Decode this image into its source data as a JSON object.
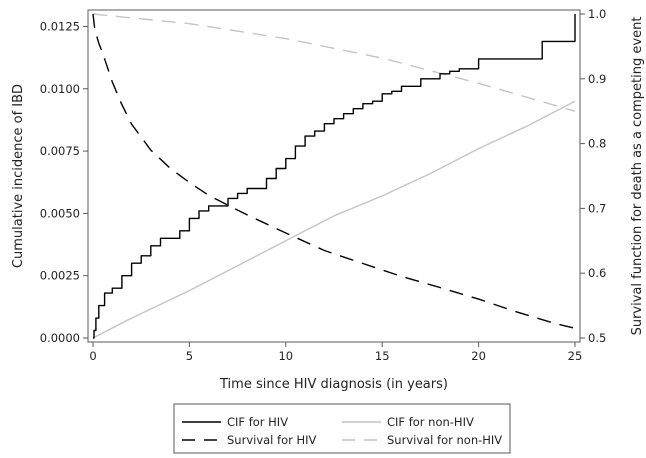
{
  "chart_data": {
    "type": "line",
    "title": "",
    "xlabel": "Time since HIV diagnosis (in years)",
    "ylabel_left": "Cumulative incidence of IBD",
    "ylabel_right": "Survival function for death as a competing event",
    "xlim": [
      0,
      25
    ],
    "ylim_left": [
      0,
      0.013
    ],
    "ylim_right": [
      0.5,
      1.0
    ],
    "x_ticks": [
      "0",
      "5",
      "10",
      "15",
      "20",
      "25"
    ],
    "y_left_ticks": [
      "0.0000",
      "0.0025",
      "0.0050",
      "0.0075",
      "0.0100",
      "0.0125"
    ],
    "y_right_ticks": [
      "0.5",
      "0.6",
      "0.7",
      "0.8",
      "0.9",
      "1.0"
    ],
    "grid": false,
    "legend_position": "bottom",
    "series": [
      {
        "name": "CIF for HIV",
        "axis": "left",
        "style": "solid",
        "color": "#000000",
        "step": true,
        "x": [
          0,
          0.05,
          0.15,
          0.3,
          0.6,
          1.0,
          1.5,
          2.0,
          2.5,
          3.0,
          3.5,
          4.0,
          4.5,
          5.0,
          5.5,
          6.0,
          7.0,
          7.5,
          8.0,
          9.0,
          9.5,
          10.0,
          10.5,
          11.0,
          11.5,
          12.0,
          12.5,
          13.0,
          13.5,
          14.0,
          14.5,
          15.0,
          15.5,
          16.0,
          17.0,
          17.5,
          18.0,
          18.5,
          19.0,
          20.0,
          21.0,
          22.0,
          23.3,
          24.0,
          25.0
        ],
        "y": [
          0.0,
          0.0003,
          0.0008,
          0.0013,
          0.0018,
          0.002,
          0.0025,
          0.003,
          0.0033,
          0.0037,
          0.004,
          0.004,
          0.0043,
          0.0048,
          0.0051,
          0.0053,
          0.0056,
          0.0058,
          0.006,
          0.0064,
          0.0068,
          0.0072,
          0.0077,
          0.0081,
          0.0083,
          0.0086,
          0.0088,
          0.009,
          0.0092,
          0.0094,
          0.0095,
          0.0098,
          0.0099,
          0.0101,
          0.0104,
          0.0104,
          0.0106,
          0.0107,
          0.0108,
          0.0112,
          0.0112,
          0.0112,
          0.0119,
          0.0119,
          0.013
        ]
      },
      {
        "name": "CIF for non-HIV",
        "axis": "left",
        "style": "solid",
        "color": "#c4c4c4",
        "step": false,
        "x": [
          0,
          2,
          5,
          7.5,
          10,
          12.5,
          15,
          17.5,
          20,
          22.5,
          25
        ],
        "y": [
          0.0,
          0.0008,
          0.0019,
          0.0029,
          0.0039,
          0.0049,
          0.0057,
          0.0066,
          0.0076,
          0.0085,
          0.0095
        ]
      },
      {
        "name": "Survival for HIV",
        "axis": "right",
        "style": "dash",
        "color": "#000000",
        "step": false,
        "x": [
          0,
          0.1,
          0.3,
          0.5,
          1,
          1.5,
          2,
          3,
          4,
          5,
          6,
          7,
          8,
          10,
          12,
          14,
          16,
          18,
          20,
          22,
          24,
          25
        ],
        "y": [
          1.0,
          0.975,
          0.955,
          0.94,
          0.895,
          0.86,
          0.83,
          0.79,
          0.762,
          0.74,
          0.72,
          0.705,
          0.69,
          0.662,
          0.635,
          0.615,
          0.595,
          0.578,
          0.56,
          0.54,
          0.522,
          0.515
        ]
      },
      {
        "name": "Survival for non-HIV",
        "axis": "right",
        "style": "dash",
        "color": "#c4c4c4",
        "step": false,
        "x": [
          0,
          5,
          10,
          15,
          20,
          25
        ],
        "y": [
          1.0,
          0.985,
          0.962,
          0.932,
          0.893,
          0.85
        ]
      }
    ]
  }
}
